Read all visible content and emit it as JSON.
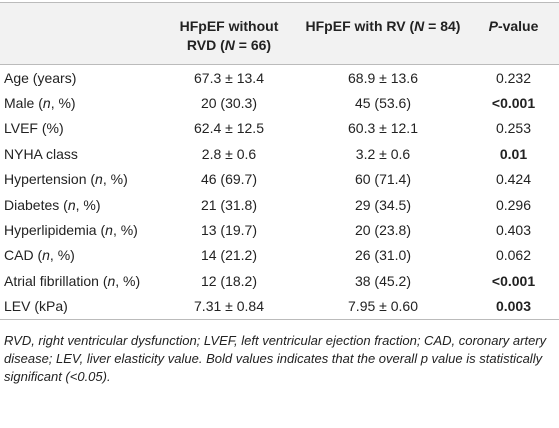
{
  "table": {
    "header": [
      [
        {
          "text": ""
        }
      ],
      [
        {
          "text": "HFpEF without RVD ("
        },
        {
          "text": "N",
          "italic": true
        },
        {
          "text": " = 66)"
        }
      ],
      [
        {
          "text": "HFpEF with RV ("
        },
        {
          "text": "N",
          "italic": true
        },
        {
          "text": " = 84)"
        }
      ],
      [
        {
          "text": "P",
          "italic": true
        },
        {
          "text": "-value"
        }
      ]
    ],
    "rows": [
      {
        "label": [
          {
            "text": "Age (years)"
          }
        ],
        "a": "67.3 ± 13.4",
        "b": "68.9 ± 13.6",
        "p": "0.232",
        "bold": false
      },
      {
        "label": [
          {
            "text": "Male ("
          },
          {
            "text": "n",
            "italic": true
          },
          {
            "text": ", %)"
          }
        ],
        "a": "20 (30.3)",
        "b": "45 (53.6)",
        "p": "<0.001",
        "bold": true
      },
      {
        "label": [
          {
            "text": "LVEF (%)"
          }
        ],
        "a": "62.4 ± 12.5",
        "b": "60.3 ± 12.1",
        "p": "0.253",
        "bold": false
      },
      {
        "label": [
          {
            "text": "NYHA class"
          }
        ],
        "a": "2.8 ± 0.6",
        "b": "3.2 ± 0.6",
        "p": "0.01",
        "bold": true
      },
      {
        "label": [
          {
            "text": "Hypertension ("
          },
          {
            "text": "n",
            "italic": true
          },
          {
            "text": ", %)"
          }
        ],
        "a": "46 (69.7)",
        "b": "60 (71.4)",
        "p": "0.424",
        "bold": false
      },
      {
        "label": [
          {
            "text": "Diabetes ("
          },
          {
            "text": "n",
            "italic": true
          },
          {
            "text": ", %)"
          }
        ],
        "a": "21 (31.8)",
        "b": "29 (34.5)",
        "p": "0.296",
        "bold": false
      },
      {
        "label": [
          {
            "text": "Hyperlipidemia ("
          },
          {
            "text": "n",
            "italic": true
          },
          {
            "text": ", %)"
          }
        ],
        "a": "13 (19.7)",
        "b": "20 (23.8)",
        "p": "0.403",
        "bold": false
      },
      {
        "label": [
          {
            "text": "CAD ("
          },
          {
            "text": "n",
            "italic": true
          },
          {
            "text": ", %)"
          }
        ],
        "a": "14 (21.2)",
        "b": "26 (31.0)",
        "p": "0.062",
        "bold": false
      },
      {
        "label": [
          {
            "text": "Atrial fibrillation ("
          },
          {
            "text": "n",
            "italic": true
          },
          {
            "text": ", %)"
          }
        ],
        "a": "12 (18.2)",
        "b": "38 (45.2)",
        "p": "<0.001",
        "bold": true
      },
      {
        "label": [
          {
            "text": "LEV (kPa)"
          }
        ],
        "a": "7.31 ± 0.84",
        "b": "7.95 ± 0.60",
        "p": "0.003",
        "bold": true
      }
    ],
    "footnote": "RVD, right ventricular dysfunction; LVEF, left ventricular ejection fraction; CAD, coronary artery disease; LEV, liver elasticity value. Bold values indicates that the overall p value is statistically significant (<0.05)."
  }
}
